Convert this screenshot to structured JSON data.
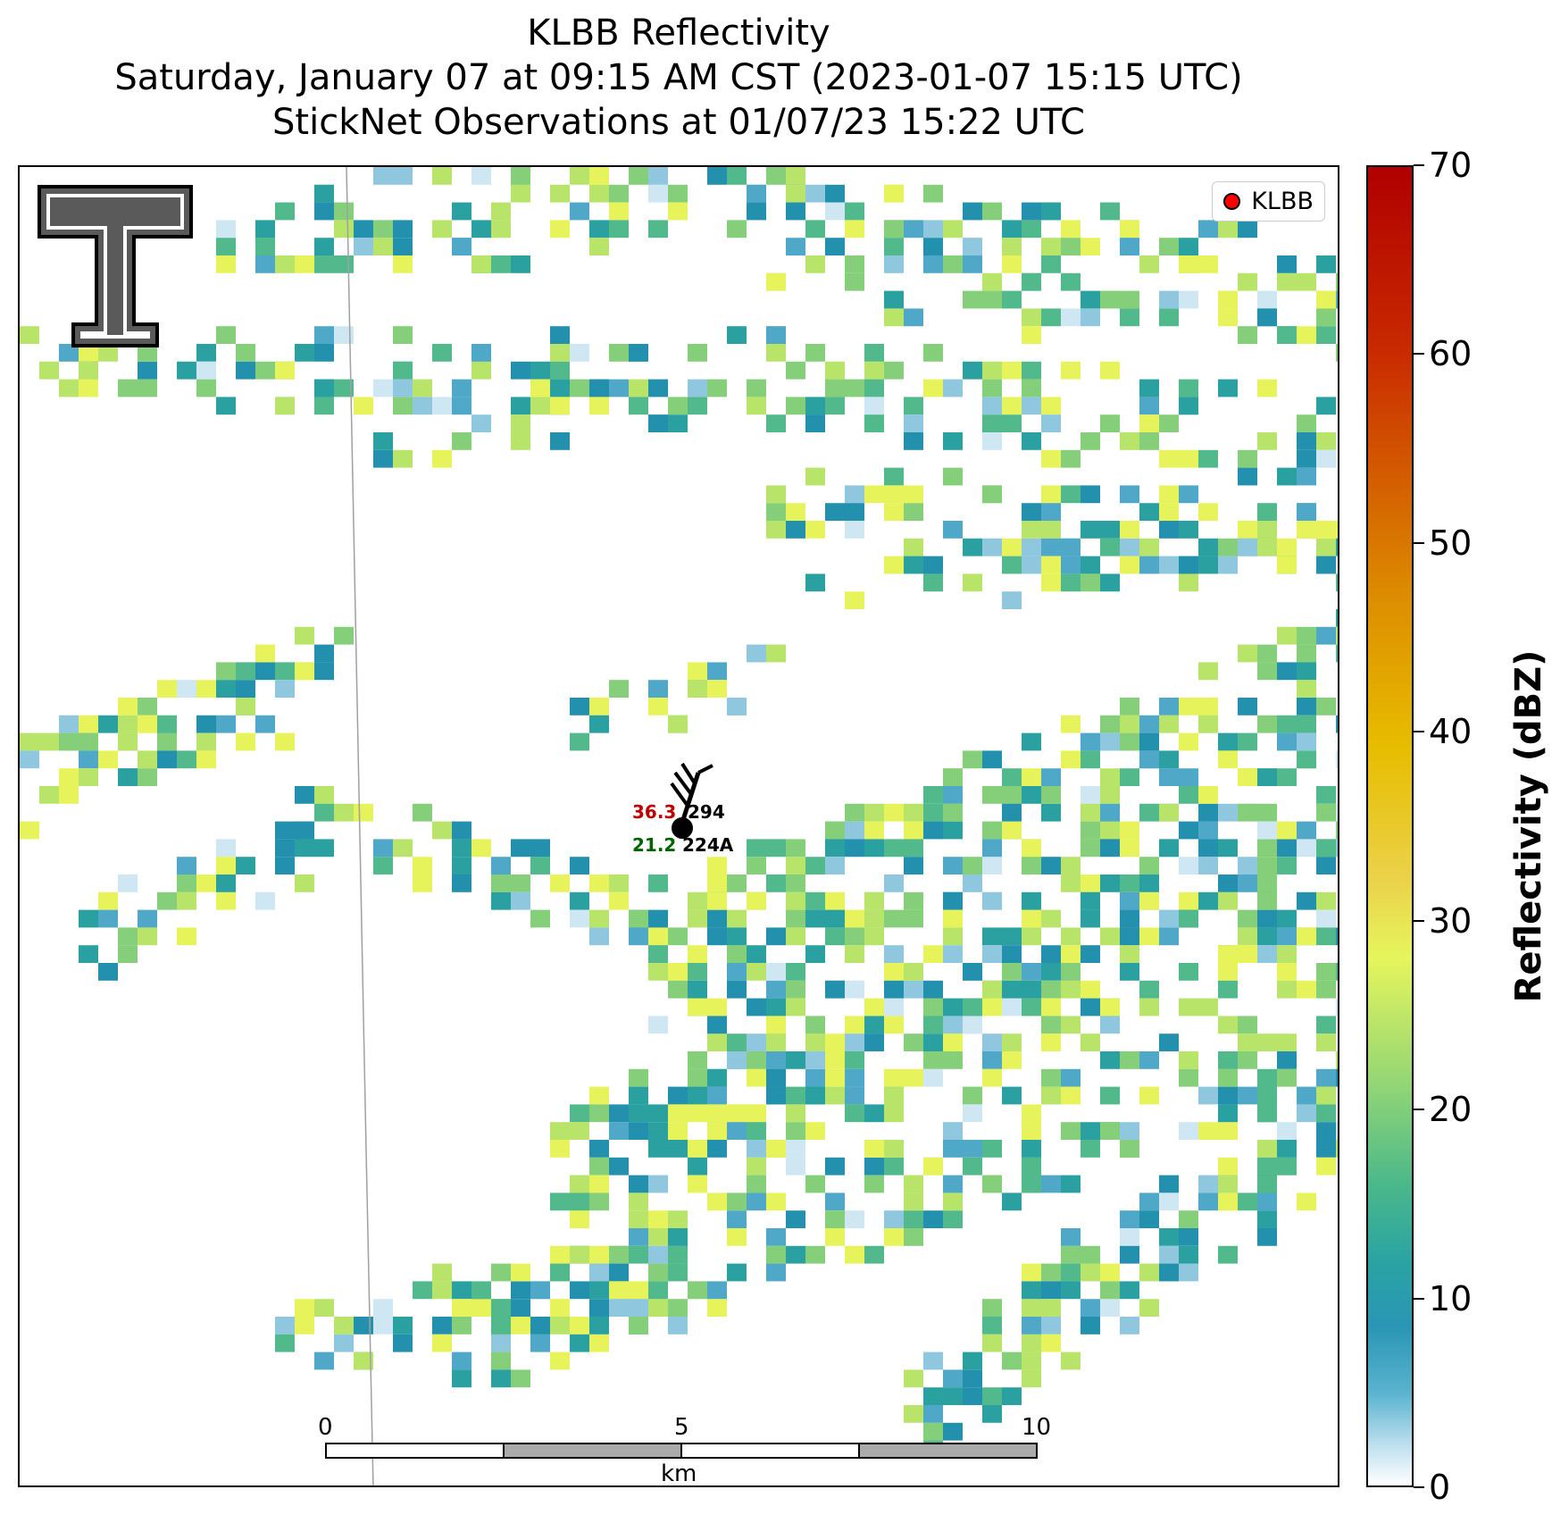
{
  "title": {
    "line1": "KLBB Reflectivity",
    "line2": "Saturday, January 07 at 09:15 AM CST (2023-01-07 15:15 UTC)",
    "line3": "StickNet Observations at 01/07/23 15:22 UTC"
  },
  "legend": {
    "label": "KLBB",
    "marker_color": "#ff0000"
  },
  "colorbar": {
    "label": "Reflectivity (dBZ)",
    "ticks": [
      "0",
      "10",
      "20",
      "30",
      "40",
      "50",
      "60",
      "70"
    ]
  },
  "stations": [
    {
      "id": "294",
      "temperature": "36.3",
      "temperature_color": "#c00000"
    },
    {
      "id": "224A",
      "dewpoint": "21.2",
      "dewpoint_color": "#006400"
    }
  ],
  "scalebar": {
    "labels": [
      "0",
      "5",
      "10"
    ],
    "unit": "km"
  },
  "palette": [
    "#cfe6f3",
    "#8fc7df",
    "#4fa8c7",
    "#2391ad",
    "#2aa1a0",
    "#52b98c",
    "#86cf7a",
    "#b8e46a",
    "#e6f35a"
  ]
}
